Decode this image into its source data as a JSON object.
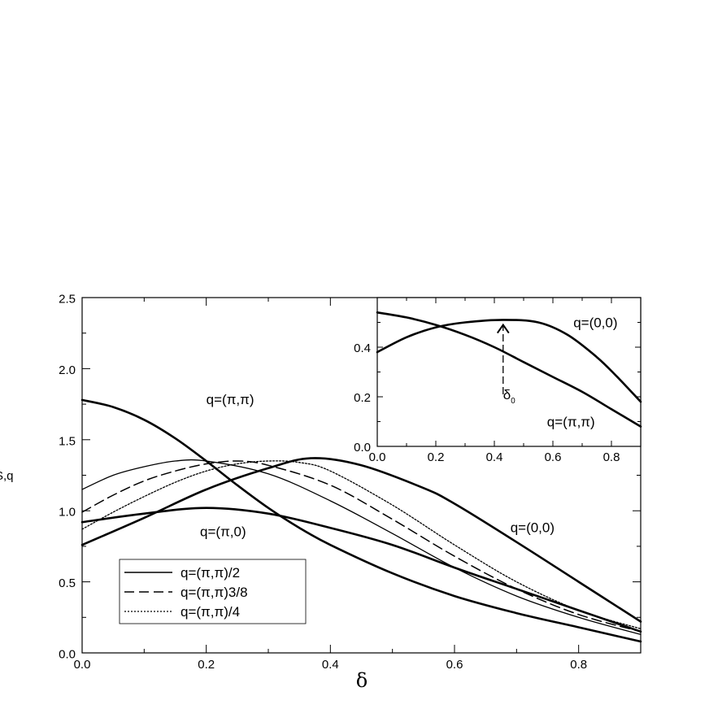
{
  "chart_data": [
    {
      "type": "line",
      "title": "",
      "xlabel": "δ",
      "ylabel": "S,q",
      "xlim": [
        0,
        0.9
      ],
      "ylim": [
        0,
        2.5
      ],
      "xticks": [
        0.0,
        0.2,
        0.4,
        0.6,
        0.8
      ],
      "xtick_labels": [
        "0.0",
        "0.2",
        "0.4",
        "0.6",
        "0.8"
      ],
      "yticks": [
        0.0,
        0.5,
        1.0,
        1.5,
        2.0,
        2.5
      ],
      "ytick_labels": [
        "0.0",
        "0.5",
        "1.0",
        "1.5",
        "2.0",
        "2.5"
      ],
      "grid": false,
      "legend_position": "bottom-left",
      "series": [
        {
          "name": "q=(π,π)",
          "style": "thick",
          "in_legend": false,
          "x": [
            0,
            0.05,
            0.1,
            0.15,
            0.2,
            0.25,
            0.3,
            0.35,
            0.4,
            0.5,
            0.6,
            0.7,
            0.8,
            0.9
          ],
          "y": [
            1.78,
            1.73,
            1.64,
            1.51,
            1.35,
            1.18,
            1.02,
            0.88,
            0.76,
            0.56,
            0.4,
            0.28,
            0.18,
            0.08
          ]
        },
        {
          "name": "q=(π,0)",
          "style": "thick",
          "in_legend": false,
          "x": [
            0,
            0.1,
            0.2,
            0.3,
            0.4,
            0.5,
            0.6,
            0.7,
            0.8,
            0.9
          ],
          "y": [
            0.92,
            0.98,
            1.02,
            0.98,
            0.88,
            0.76,
            0.6,
            0.45,
            0.3,
            0.15
          ]
        },
        {
          "name": "q=(0,0)",
          "style": "thick",
          "in_legend": false,
          "x": [
            0,
            0.1,
            0.2,
            0.3,
            0.37,
            0.45,
            0.55,
            0.6,
            0.7,
            0.8,
            0.9
          ],
          "y": [
            0.76,
            0.95,
            1.15,
            1.3,
            1.37,
            1.32,
            1.16,
            1.05,
            0.78,
            0.5,
            0.22
          ]
        },
        {
          "name": "q=(π,π)/2",
          "style": "solid",
          "in_legend": true,
          "x": [
            0,
            0.05,
            0.1,
            0.15,
            0.2,
            0.3,
            0.4,
            0.5,
            0.6,
            0.7,
            0.8,
            0.9
          ],
          "y": [
            1.15,
            1.25,
            1.31,
            1.35,
            1.35,
            1.26,
            1.07,
            0.84,
            0.6,
            0.4,
            0.25,
            0.13
          ]
        },
        {
          "name": "q=(π,π)3/8",
          "style": "dashed",
          "in_legend": true,
          "x": [
            0,
            0.05,
            0.1,
            0.15,
            0.2,
            0.25,
            0.3,
            0.4,
            0.5,
            0.6,
            0.7,
            0.8,
            0.9
          ],
          "y": [
            0.99,
            1.11,
            1.21,
            1.28,
            1.33,
            1.35,
            1.32,
            1.18,
            0.94,
            0.68,
            0.45,
            0.27,
            0.15
          ]
        },
        {
          "name": "q=(π,π)/4",
          "style": "dotted",
          "in_legend": true,
          "x": [
            0,
            0.05,
            0.1,
            0.15,
            0.2,
            0.25,
            0.3,
            0.35,
            0.4,
            0.5,
            0.6,
            0.7,
            0.8,
            0.9
          ],
          "y": [
            0.87,
            0.99,
            1.1,
            1.2,
            1.28,
            1.33,
            1.35,
            1.34,
            1.28,
            1.04,
            0.76,
            0.5,
            0.3,
            0.17
          ]
        }
      ],
      "annotations": [
        {
          "text": "q=(π,π)",
          "x": 0.2,
          "y": 1.75
        },
        {
          "text": "q=(π,0)",
          "x": 0.19,
          "y": 0.82
        },
        {
          "text": "q=(0,0)",
          "x": 0.69,
          "y": 0.85
        }
      ]
    },
    {
      "type": "line",
      "title": "",
      "xlabel": "",
      "ylabel": "",
      "xlim": [
        0,
        0.9
      ],
      "ylim": [
        0,
        0.6
      ],
      "xticks": [
        0.0,
        0.2,
        0.4,
        0.6,
        0.8
      ],
      "xtick_labels": [
        "0.0",
        "0.2",
        "0.4",
        "0.6",
        "0.8"
      ],
      "yticks": [
        0.0,
        0.2,
        0.4
      ],
      "ytick_labels": [
        "0.0",
        "0.2",
        "0.4"
      ],
      "grid": false,
      "series": [
        {
          "name": "q=(0,0)",
          "style": "thick",
          "x": [
            0,
            0.1,
            0.2,
            0.3,
            0.43,
            0.55,
            0.65,
            0.75,
            0.82,
            0.9
          ],
          "y": [
            0.38,
            0.44,
            0.48,
            0.5,
            0.51,
            0.5,
            0.45,
            0.36,
            0.28,
            0.18
          ]
        },
        {
          "name": "q=(π,π)",
          "style": "thick",
          "x": [
            0,
            0.1,
            0.2,
            0.3,
            0.4,
            0.5,
            0.6,
            0.7,
            0.8,
            0.9
          ],
          "y": [
            0.54,
            0.52,
            0.49,
            0.45,
            0.4,
            0.34,
            0.28,
            0.22,
            0.15,
            0.08
          ]
        }
      ],
      "annotations": [
        {
          "text": "q=(0,0)",
          "x": 0.67,
          "y": 0.48
        },
        {
          "text": "q=(π,π)",
          "x": 0.58,
          "y": 0.08
        },
        {
          "text": "δ",
          "subscript": "0",
          "x": 0.43,
          "y": 0.19
        }
      ],
      "marker": {
        "label": "δ0",
        "x": 0.43,
        "y_from": 0.21,
        "y_to": 0.49
      }
    }
  ]
}
